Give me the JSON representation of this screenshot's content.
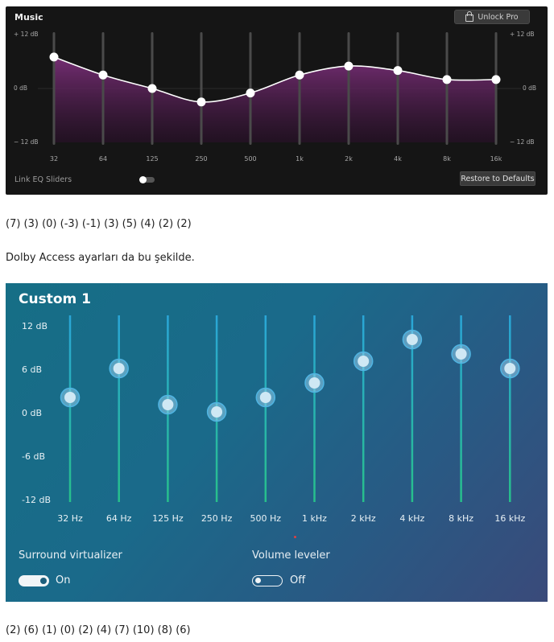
{
  "eq1": {
    "title": "Music",
    "unlock_label": "Unlock Pro",
    "y_labels": {
      "top": "+ 12 dB",
      "mid": "0 dB",
      "bottom": "− 12 dB"
    },
    "link_label": "Link EQ Sliders",
    "link_on": false,
    "restore_label": "Restore to Defaults",
    "colors": {
      "bg": "#151515",
      "fill": "#6b2a6a",
      "curve": "#ffffff"
    },
    "chart_data": {
      "type": "line",
      "x": [
        "32",
        "64",
        "125",
        "250",
        "500",
        "1k",
        "2k",
        "4k",
        "8k",
        "16k"
      ],
      "values": [
        7,
        3,
        0,
        -3,
        -1,
        3,
        5,
        4,
        2,
        2
      ],
      "ylim": [
        -12,
        12
      ]
    }
  },
  "caption1": "(7) (3) (0) (-3) (-1) (3) (5) (4) (2) (2)",
  "sentence": "Dolby Access ayarları da bu şekilde.",
  "eq2": {
    "title": "Custom 1",
    "y_labels": [
      "12 dB",
      "6 dB",
      "0 dB",
      "-6 dB",
      "-12 dB"
    ],
    "surround_label": "Surround virtualizer",
    "surround_state": "On",
    "volume_label": "Volume leveler",
    "volume_state": "Off",
    "colors": {
      "track_top": "#2aa6d8",
      "track_bottom": "#27c08a",
      "knob": "#cfe8f4"
    },
    "chart_data": {
      "type": "line",
      "x": [
        "32 Hz",
        "64 Hz",
        "125 Hz",
        "250 Hz",
        "500 Hz",
        "1 kHz",
        "2 kHz",
        "4 kHz",
        "8 kHz",
        "16 kHz"
      ],
      "values": [
        2,
        6,
        1,
        0,
        2,
        4,
        7,
        10,
        8,
        6
      ],
      "ylim": [
        -12,
        12
      ]
    }
  },
  "caption2": "(2) (6) (1) (0) (2) (4) (7) (10) (8) (6)"
}
